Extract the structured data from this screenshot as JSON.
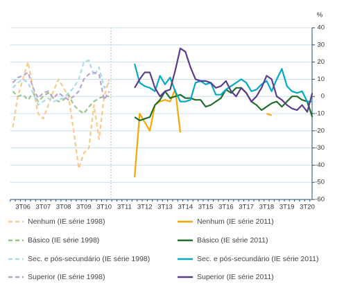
{
  "chart_data": {
    "type": "line",
    "y_label": "%",
    "categories": [
      "1T06",
      "2T06",
      "3T06",
      "4T06",
      "1T07",
      "2T07",
      "3T07",
      "4T07",
      "1T08",
      "2T08",
      "3T08",
      "4T08",
      "1T09",
      "2T09",
      "3T09",
      "4T09",
      "1T10",
      "2T10",
      "3T10",
      "4T10",
      "1T11",
      "2T11",
      "3T11",
      "4T11",
      "1T12",
      "2T12",
      "3T12",
      "4T12",
      "1T13",
      "2T13",
      "3T13",
      "4T13",
      "1T14",
      "2T14",
      "3T14",
      "4T14",
      "1T15",
      "2T15",
      "3T15",
      "4T15",
      "1T16",
      "2T16",
      "3T16",
      "4T16",
      "1T17",
      "2T17",
      "3T17",
      "4T17",
      "1T18",
      "2T18",
      "3T18",
      "4T18",
      "1T19",
      "2T19",
      "3T19",
      "4T19",
      "1T20",
      "2T20",
      "3T20",
      null
    ],
    "tick_labels": [
      "3T06",
      "3T07",
      "3T08",
      "3T09",
      "3T10",
      "3T11",
      "3T12",
      "3T13",
      "3T14",
      "3T15",
      "3T16",
      "3T17",
      "3T18",
      "3T19",
      "3T20"
    ],
    "ylim": [
      -60,
      40
    ],
    "yticks": [
      -60,
      -50,
      -40,
      -30,
      -20,
      -10,
      0,
      10,
      20,
      30,
      40
    ],
    "grid": true,
    "y_axis_side": "right",
    "series": [
      {
        "name": "Nenhum (IE série 1998)",
        "color": "#f9c98a",
        "dashed": true,
        "values": [
          -18,
          0,
          10,
          20,
          5,
          -10,
          -13,
          -5,
          3,
          10,
          5,
          0,
          -20,
          -42,
          -33,
          -30,
          -5,
          -25,
          0,
          10,
          null,
          null,
          null,
          null,
          null,
          null,
          null,
          null,
          null,
          null,
          null,
          null,
          null,
          null,
          null,
          null,
          null,
          null,
          null,
          null,
          null,
          null,
          null,
          null,
          null,
          null,
          null,
          null,
          null,
          null,
          null,
          null,
          null,
          null,
          null,
          null,
          null,
          null,
          null,
          null
        ]
      },
      {
        "name": "Nenhum (IE série 2011)",
        "color": "#f5a800",
        "dashed": false,
        "values": [
          null,
          null,
          null,
          null,
          null,
          null,
          null,
          null,
          null,
          null,
          null,
          null,
          null,
          null,
          null,
          null,
          null,
          null,
          null,
          null,
          null,
          null,
          null,
          null,
          -47,
          -10,
          -15,
          -20,
          -5,
          -3,
          -2,
          -3,
          4,
          -21,
          null,
          null,
          null,
          null,
          null,
          null,
          null,
          null,
          null,
          null,
          null,
          null,
          null,
          null,
          null,
          null,
          -10,
          -11,
          null,
          null,
          null,
          null,
          null,
          null,
          null,
          null
        ]
      },
      {
        "name": "Básico (IE série 1998)",
        "color": "#9dc38d",
        "dashed": true,
        "values": [
          3,
          0,
          1,
          -2,
          2,
          -3,
          0,
          2,
          -1,
          -3,
          -2,
          1,
          -5,
          -8,
          -10,
          -6,
          -3,
          -1,
          0,
          0,
          null,
          null,
          null,
          null,
          null,
          null,
          null,
          null,
          null,
          null,
          null,
          null,
          null,
          null,
          null,
          null,
          null,
          null,
          null,
          null,
          null,
          null,
          null,
          null,
          null,
          null,
          null,
          null,
          null,
          null,
          null,
          null,
          null,
          null,
          null,
          null,
          null,
          null,
          null,
          null
        ]
      },
      {
        "name": "Básico (IE série 2011)",
        "color": "#1e6e2a",
        "dashed": false,
        "values": [
          null,
          null,
          null,
          null,
          null,
          null,
          null,
          null,
          null,
          null,
          null,
          null,
          null,
          null,
          null,
          null,
          null,
          null,
          null,
          null,
          null,
          null,
          null,
          null,
          -12,
          -14,
          -13,
          -12,
          -5,
          -2,
          3,
          -1,
          0,
          1,
          -1,
          -1,
          -2,
          -2,
          -6,
          -5,
          -3,
          -1,
          4,
          2,
          5,
          5,
          2,
          -3,
          -5,
          -8,
          -6,
          -4,
          -3,
          -6,
          -3,
          0,
          0,
          -2,
          -3,
          -12
        ]
      },
      {
        "name": "Sec. e pós-secundário (IE série 1998)",
        "color": "#a9dcea",
        "dashed": true,
        "values": [
          5,
          8,
          10,
          8,
          2,
          -5,
          -3,
          -1,
          -3,
          -2,
          -1,
          2,
          5,
          10,
          20,
          21,
          12,
          17,
          5,
          8,
          null,
          null,
          null,
          null,
          null,
          null,
          null,
          null,
          null,
          null,
          null,
          null,
          null,
          null,
          null,
          null,
          null,
          null,
          null,
          null,
          null,
          null,
          null,
          null,
          null,
          null,
          null,
          null,
          null,
          null,
          null,
          null,
          null,
          null,
          null,
          null,
          null,
          null,
          null,
          null
        ]
      },
      {
        "name": "Sec. e pós-secundário (IE série 2011)",
        "color": "#00a9c8",
        "dashed": false,
        "values": [
          null,
          null,
          null,
          null,
          null,
          null,
          null,
          null,
          null,
          null,
          null,
          null,
          null,
          null,
          null,
          null,
          null,
          null,
          null,
          null,
          null,
          null,
          null,
          null,
          19,
          8,
          6,
          5,
          3,
          12,
          7,
          11,
          3,
          -3,
          -3,
          -2,
          8,
          9,
          7,
          8,
          1,
          1,
          4,
          6,
          8,
          10,
          8,
          3,
          4,
          7,
          9,
          3,
          10,
          16,
          6,
          3,
          2,
          3,
          -3,
          -3
        ]
      },
      {
        "name": "Superior (IE série 1998)",
        "color": "#b6a6cf",
        "dashed": true,
        "values": [
          8,
          11,
          12,
          14,
          5,
          -1,
          2,
          3,
          -1,
          2,
          0,
          -2,
          0,
          3,
          10,
          13,
          14,
          13,
          -2,
          3,
          null,
          null,
          null,
          null,
          null,
          null,
          null,
          null,
          null,
          null,
          null,
          null,
          null,
          null,
          null,
          null,
          null,
          null,
          null,
          null,
          null,
          null,
          null,
          null,
          null,
          null,
          null,
          null,
          null,
          null,
          null,
          null,
          null,
          null,
          null,
          null,
          null,
          null,
          null,
          null
        ]
      },
      {
        "name": "Superior (IE série 2011)",
        "color": "#5a3b8c",
        "dashed": false,
        "values": [
          null,
          null,
          null,
          null,
          null,
          null,
          null,
          null,
          null,
          null,
          null,
          null,
          null,
          null,
          null,
          null,
          null,
          null,
          null,
          null,
          null,
          null,
          null,
          null,
          5,
          10,
          14,
          14,
          5,
          0,
          3,
          4,
          15,
          28,
          26,
          17,
          10,
          9,
          9,
          8,
          5,
          6,
          9,
          3,
          0,
          5,
          2,
          -3,
          0,
          5,
          12,
          10,
          0,
          -2,
          -5,
          -7,
          -8,
          -5,
          -9,
          2
        ]
      }
    ]
  }
}
